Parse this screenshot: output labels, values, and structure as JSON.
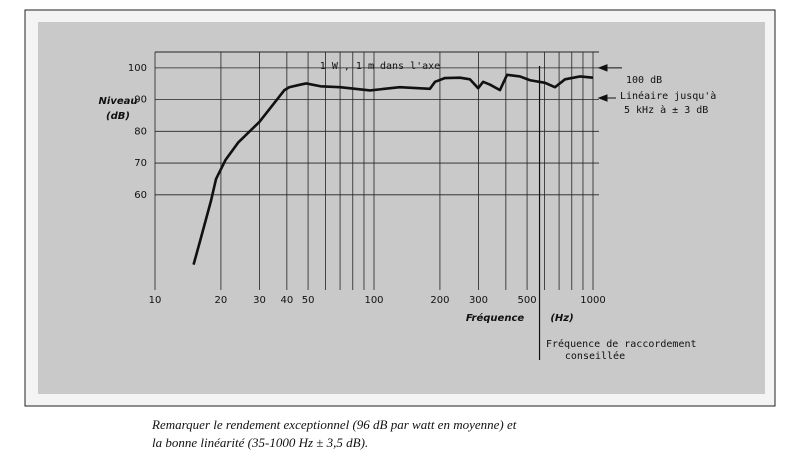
{
  "chart_data": {
    "type": "line",
    "y_label": [
      "Niveau",
      "(dB)"
    ],
    "x_label": "Fréquence",
    "x_unit": "(Hz)",
    "top_note": "1 W , 1 m  dans  l'axe",
    "level_note": "100 dB",
    "linearity_note": [
      "Linéaire jusqu'à",
      "5 kHz  à ± 3 dB"
    ],
    "crossover_note": [
      "Fréquence de raccordement",
      "conseillée"
    ],
    "crossover_x": 570,
    "log_x": true,
    "xlim": [
      10,
      1000
    ],
    "xticks": [
      10,
      20,
      30,
      40,
      50,
      100,
      200,
      300,
      500,
      1000
    ],
    "xminor": [
      60,
      70,
      80,
      90,
      400,
      600,
      700,
      800,
      900
    ],
    "ylim": [
      30,
      105
    ],
    "yticks": [
      60,
      70,
      80,
      90,
      100
    ],
    "grid": true,
    "series": [
      {
        "color": "#111111",
        "x": [
          15,
          16,
          18,
          19,
          21,
          24,
          30,
          39,
          41,
          46,
          49,
          57,
          70,
          96,
          131,
          180,
          190,
          211,
          247,
          274,
          299,
          315,
          339,
          376,
          405,
          464,
          516,
          604,
          670,
          745,
          873,
          1000
        ],
        "values": [
          38,
          45,
          58,
          65,
          71,
          76.5,
          83,
          93,
          93.9,
          94.7,
          95.1,
          94.2,
          93.9,
          92.9,
          93.9,
          93.4,
          95.6,
          96.8,
          96.9,
          96.4,
          93.6,
          95.6,
          94.7,
          93,
          97.8,
          97.3,
          96.1,
          95.3,
          93.9,
          96.4,
          97.3,
          96.9
        ]
      }
    ]
  },
  "caption": [
    "Remarquer le rendement exceptionnel (96 dB par watt en moyenne) et",
    "la bonne linéarité (35-1000 Hz ± 3,5 dB)."
  ]
}
